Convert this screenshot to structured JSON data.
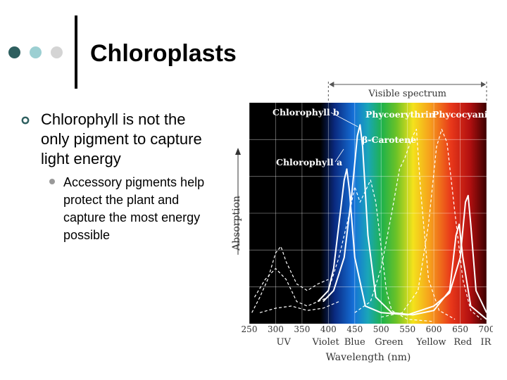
{
  "slide": {
    "title": "Chloroplasts",
    "bullet_1": "Chlorophyll is not the only pigment to capture light energy",
    "bullet_2": "Accessory pigments help protect the plant and capture the most energy possible"
  },
  "colors": {
    "dot_dark": "#2e5f5f",
    "dot_mid": "#9ccfd2",
    "dot_light": "#d4d4d4",
    "bullet_marker": "#2e5f5f",
    "plot_background": "#000000"
  },
  "chart_data": {
    "type": "line",
    "title": "",
    "band_label": "Visible spectrum",
    "xlabel": "Wavelength (nm)",
    "ylabel": "Absorption",
    "xlim": [
      250,
      700
    ],
    "x_ticks": [
      250,
      300,
      350,
      400,
      450,
      500,
      550,
      600,
      650,
      700
    ],
    "regions": [
      {
        "label": "UV",
        "x": 315
      },
      {
        "label": "Violet",
        "x": 395
      },
      {
        "label": "Blue",
        "x": 450
      },
      {
        "label": "Green",
        "x": 515
      },
      {
        "label": "Yellow",
        "x": 595
      },
      {
        "label": "Red",
        "x": 655
      },
      {
        "label": "IR",
        "x": 715
      }
    ],
    "visible_range": [
      400,
      700
    ],
    "series": [
      {
        "name": "Chlorophyll a",
        "style": "solid",
        "points": [
          [
            380,
            0.1
          ],
          [
            400,
            0.15
          ],
          [
            410,
            0.25
          ],
          [
            420,
            0.45
          ],
          [
            430,
            0.65
          ],
          [
            435,
            0.7
          ],
          [
            440,
            0.6
          ],
          [
            450,
            0.3
          ],
          [
            470,
            0.08
          ],
          [
            500,
            0.05
          ],
          [
            550,
            0.04
          ],
          [
            600,
            0.08
          ],
          [
            630,
            0.14
          ],
          [
            650,
            0.3
          ],
          [
            660,
            0.55
          ],
          [
            665,
            0.58
          ],
          [
            670,
            0.45
          ],
          [
            680,
            0.15
          ],
          [
            700,
            0.05
          ]
        ]
      },
      {
        "name": "Chlorophyll b",
        "style": "solid",
        "points": [
          [
            390,
            0.1
          ],
          [
            410,
            0.15
          ],
          [
            430,
            0.3
          ],
          [
            445,
            0.6
          ],
          [
            455,
            0.85
          ],
          [
            460,
            0.9
          ],
          [
            465,
            0.8
          ],
          [
            475,
            0.4
          ],
          [
            490,
            0.12
          ],
          [
            520,
            0.05
          ],
          [
            560,
            0.04
          ],
          [
            600,
            0.06
          ],
          [
            630,
            0.15
          ],
          [
            642,
            0.4
          ],
          [
            648,
            0.45
          ],
          [
            655,
            0.3
          ],
          [
            670,
            0.08
          ],
          [
            700,
            0.02
          ]
        ]
      },
      {
        "name": "β-Carotene",
        "style": "dashed",
        "points": [
          [
            400,
            0.15
          ],
          [
            420,
            0.3
          ],
          [
            440,
            0.5
          ],
          [
            450,
            0.62
          ],
          [
            460,
            0.55
          ],
          [
            470,
            0.6
          ],
          [
            480,
            0.65
          ],
          [
            490,
            0.55
          ],
          [
            500,
            0.35
          ],
          [
            510,
            0.15
          ],
          [
            520,
            0.06
          ],
          [
            550,
            0.02
          ],
          [
            600,
            0.01
          ]
        ]
      },
      {
        "name": "Phycoerythrin",
        "style": "dashed",
        "points": [
          [
            450,
            0.05
          ],
          [
            480,
            0.1
          ],
          [
            500,
            0.25
          ],
          [
            520,
            0.5
          ],
          [
            535,
            0.7
          ],
          [
            545,
            0.75
          ],
          [
            560,
            0.85
          ],
          [
            567,
            0.88
          ],
          [
            575,
            0.6
          ],
          [
            590,
            0.2
          ],
          [
            610,
            0.06
          ],
          [
            640,
            0.02
          ]
        ]
      },
      {
        "name": "Phycocyanin",
        "style": "dashed",
        "points": [
          [
            500,
            0.03
          ],
          [
            540,
            0.05
          ],
          [
            570,
            0.15
          ],
          [
            590,
            0.45
          ],
          [
            605,
            0.8
          ],
          [
            615,
            0.88
          ],
          [
            625,
            0.82
          ],
          [
            640,
            0.5
          ],
          [
            655,
            0.2
          ],
          [
            670,
            0.06
          ],
          [
            690,
            0.02
          ]
        ]
      },
      {
        "name": "",
        "style": "dashed",
        "points": [
          [
            255,
            0.05
          ],
          [
            270,
            0.12
          ],
          [
            285,
            0.2
          ],
          [
            300,
            0.32
          ],
          [
            310,
            0.35
          ],
          [
            320,
            0.28
          ],
          [
            340,
            0.18
          ],
          [
            360,
            0.15
          ],
          [
            380,
            0.18
          ],
          [
            400,
            0.2
          ]
        ]
      },
      {
        "name": "",
        "style": "dashed",
        "points": [
          [
            260,
            0.12
          ],
          [
            280,
            0.2
          ],
          [
            300,
            0.25
          ],
          [
            320,
            0.2
          ],
          [
            340,
            0.1
          ],
          [
            360,
            0.08
          ],
          [
            380,
            0.1
          ],
          [
            400,
            0.12
          ]
        ]
      },
      {
        "name": "",
        "style": "dashed",
        "points": [
          [
            270,
            0.05
          ],
          [
            300,
            0.07
          ],
          [
            330,
            0.08
          ],
          [
            360,
            0.06
          ],
          [
            390,
            0.07
          ],
          [
            420,
            0.1
          ]
        ]
      }
    ]
  }
}
